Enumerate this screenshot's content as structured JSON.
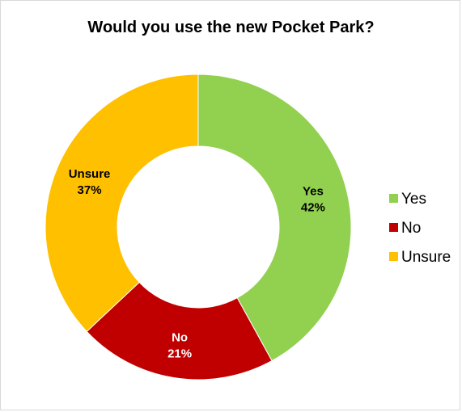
{
  "chart_data": {
    "type": "pie",
    "variant": "donut",
    "title": "Would you use the new Pocket Park?",
    "categories": [
      "Yes",
      "No",
      "Unsure"
    ],
    "values": [
      42,
      21,
      37
    ],
    "value_labels": [
      "42%",
      "21%",
      "37%"
    ],
    "colors": [
      "#92d050",
      "#c00000",
      "#ffc000"
    ],
    "label_colors": [
      "#000000",
      "#ffffff",
      "#000000"
    ],
    "legend": {
      "position": "right",
      "entries": [
        "Yes",
        "No",
        "Unsure"
      ]
    }
  }
}
